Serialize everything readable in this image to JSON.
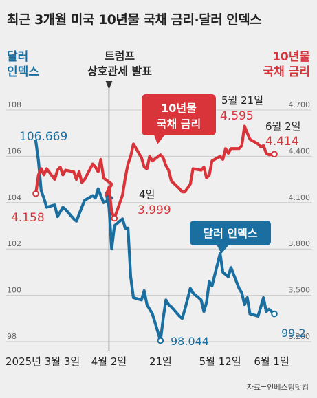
{
  "title": "최근 3개월 미국 10년물 국채 금리·달러 인덱스",
  "left_axis_title": [
    "달러",
    "인덱스"
  ],
  "right_axis_title": [
    "10년물",
    "국채 금리"
  ],
  "event_label": [
    "트럼프",
    "상호관세 발표"
  ],
  "source": "자료=인베스팅닷컴",
  "colors": {
    "dollar": "#1a6ea0",
    "yield": "#d9343a",
    "grid": "#c8c8c8",
    "event": "#333333"
  },
  "chart_data": {
    "type": "line",
    "x_labels": [
      "2025년 3월 3일",
      "4월 2일",
      "21일",
      "5월 12일",
      "6월 1일"
    ],
    "left_ticks": [
      "108",
      "106",
      "104",
      "102",
      "100",
      "98"
    ],
    "right_ticks": [
      "4.700",
      "4.400",
      "4.100",
      "3.800",
      "3.500",
      "3.200"
    ],
    "left_ylim": [
      98,
      108
    ],
    "right_ylim": [
      3.2,
      4.7
    ],
    "series": [
      {
        "name": "달러 인덱스",
        "axis": "left",
        "x": [
          "3/3",
          "3/4",
          "3/5",
          "3/6",
          "3/7",
          "3/10",
          "3/11",
          "3/12",
          "3/13",
          "3/14",
          "3/17",
          "3/18",
          "3/19",
          "3/20",
          "3/21",
          "3/24",
          "3/25",
          "3/26",
          "3/27",
          "3/28",
          "3/31",
          "4/1",
          "4/2",
          "4/3",
          "4/4",
          "4/7",
          "4/8",
          "4/9",
          "4/10",
          "4/11",
          "4/14",
          "4/15",
          "4/16",
          "4/17",
          "4/18",
          "4/21",
          "4/22",
          "4/23",
          "4/24",
          "4/25",
          "4/28",
          "4/29",
          "4/30",
          "5/1",
          "5/2",
          "5/5",
          "5/6",
          "5/7",
          "5/8",
          "5/9",
          "5/12",
          "5/13",
          "5/14",
          "5/15",
          "5/16",
          "5/19",
          "5/20",
          "5/21",
          "5/22",
          "5/23",
          "5/26",
          "5/27",
          "5/28",
          "5/29",
          "5/30",
          "6/2"
        ],
        "values": [
          106.669,
          105.8,
          104.5,
          104.2,
          103.8,
          103.9,
          103.4,
          103.6,
          103.8,
          103.7,
          103.3,
          103.2,
          103.5,
          103.8,
          104.1,
          104.3,
          104.2,
          104.6,
          104.3,
          104.0,
          104.2,
          104.4,
          103.8,
          102.0,
          103.0,
          103.3,
          102.9,
          102.9,
          100.8,
          99.9,
          99.8,
          100.2,
          99.6,
          99.4,
          99.2,
          98.044,
          99.0,
          99.8,
          99.6,
          99.5,
          99.1,
          99.0,
          99.4,
          100.3,
          100.1,
          99.8,
          99.3,
          99.7,
          100.6,
          100.4,
          101.8,
          101.0,
          100.9,
          100.8,
          101.2,
          100.3,
          100.1,
          99.6,
          99.9,
          99.2,
          99.1,
          99.5,
          99.9,
          99.3,
          99.4,
          99.2
        ]
      },
      {
        "name": "10년물 국채 금리",
        "axis": "right",
        "x": [
          "3/3",
          "3/4",
          "3/5",
          "3/6",
          "3/7",
          "3/10",
          "3/11",
          "3/12",
          "3/13",
          "3/14",
          "3/17",
          "3/18",
          "3/19",
          "3/20",
          "3/21",
          "3/24",
          "3/25",
          "3/26",
          "3/27",
          "3/28",
          "3/31",
          "4/1",
          "4/2",
          "4/3",
          "4/4",
          "4/7",
          "4/8",
          "4/9",
          "4/10",
          "4/11",
          "4/14",
          "4/15",
          "4/16",
          "4/17",
          "4/18",
          "4/21",
          "4/22",
          "4/23",
          "4/24",
          "4/25",
          "4/28",
          "4/29",
          "4/30",
          "5/1",
          "5/2",
          "5/5",
          "5/6",
          "5/7",
          "5/8",
          "5/9",
          "5/12",
          "5/13",
          "5/14",
          "5/15",
          "5/16",
          "5/19",
          "5/20",
          "5/21",
          "5/22",
          "5/23",
          "5/26",
          "5/27",
          "5/28",
          "5/29",
          "5/30",
          "6/2"
        ],
        "values": [
          4.158,
          4.28,
          4.32,
          4.28,
          4.32,
          4.25,
          4.31,
          4.33,
          4.28,
          4.31,
          4.3,
          4.25,
          4.3,
          4.23,
          4.25,
          4.35,
          4.33,
          4.3,
          4.38,
          4.26,
          4.22,
          4.15,
          4.2,
          4.04,
          3.999,
          4.15,
          4.26,
          4.35,
          4.4,
          4.48,
          4.39,
          4.33,
          4.32,
          4.4,
          4.37,
          4.41,
          4.39,
          4.34,
          4.31,
          4.24,
          4.19,
          4.17,
          4.17,
          4.22,
          4.32,
          4.31,
          4.33,
          4.26,
          4.28,
          4.37,
          4.4,
          4.38,
          4.45,
          4.42,
          4.45,
          4.45,
          4.47,
          4.595,
          4.55,
          4.51,
          4.48,
          4.46,
          4.47,
          4.42,
          4.41,
          4.414
        ]
      }
    ],
    "annotations": [
      {
        "text": "106.669",
        "series": "달러 인덱스",
        "x": "3/3",
        "value": 106.669
      },
      {
        "text": "98.044",
        "series": "달러 인덱스",
        "x": "4/21",
        "value": 98.044
      },
      {
        "text": "99.2",
        "series": "달러 인덱스",
        "x": "6/2",
        "value": 99.2
      },
      {
        "text": "4.158",
        "series": "10년물 국채 금리",
        "x": "3/3",
        "value": 4.158
      },
      {
        "text": "4일",
        "series": "10년물 국채 금리",
        "x": "4/4",
        "value": 3.999
      },
      {
        "text": "3.999",
        "series": "10년물 국채 금리",
        "x": "4/4",
        "value": 3.999
      },
      {
        "text": "5월 21일",
        "series": "10년물 국채 금리",
        "x": "5/21",
        "value": 4.595
      },
      {
        "text": "4.595",
        "series": "10년물 국채 금리",
        "x": "5/21",
        "value": 4.595
      },
      {
        "text": "6월 2일",
        "series": "10년물 국채 금리",
        "x": "6/2",
        "value": 4.414
      },
      {
        "text": "4.414",
        "series": "10년물 국채 금리",
        "x": "6/2",
        "value": 4.414
      }
    ],
    "callouts": [
      "10년물\n국채 금리",
      "달러 인덱스"
    ]
  }
}
